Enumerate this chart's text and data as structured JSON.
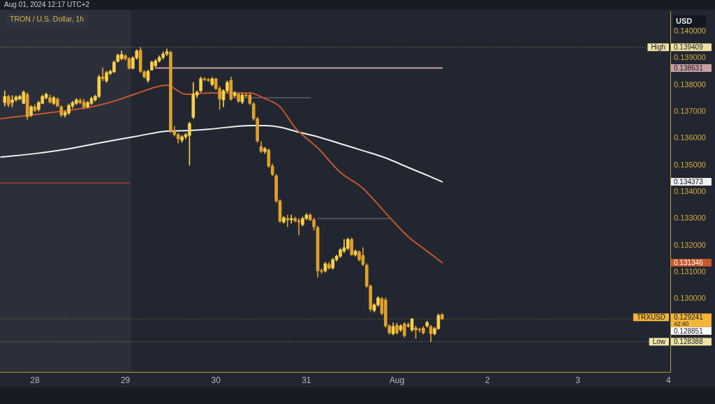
{
  "chart_data": {
    "type": "candlestick",
    "title": "TRON / U.S. Dollar, 1h",
    "subtitle": "Aug 01, 2024 12:17 UTC+2",
    "ylabel": "USD",
    "x": [
      "2024-07-27T16:00",
      "2024-07-27T17:00",
      "2024-07-27T18:00",
      "2024-07-27T19:00",
      "2024-07-27T20:00",
      "2024-07-27T21:00",
      "2024-07-27T22:00",
      "2024-07-27T23:00",
      "2024-07-28T00:00",
      "2024-07-28T01:00",
      "2024-07-28T02:00",
      "2024-07-28T03:00",
      "2024-07-28T04:00",
      "2024-07-28T05:00",
      "2024-07-28T06:00",
      "2024-07-28T07:00",
      "2024-07-28T08:00",
      "2024-07-28T09:00",
      "2024-07-28T10:00",
      "2024-07-28T11:00",
      "2024-07-28T12:00",
      "2024-07-28T13:00",
      "2024-07-28T14:00",
      "2024-07-28T15:00",
      "2024-07-28T16:00",
      "2024-07-28T17:00",
      "2024-07-28T18:00",
      "2024-07-28T19:00",
      "2024-07-28T20:00",
      "2024-07-28T21:00",
      "2024-07-28T22:00",
      "2024-07-28T23:00",
      "2024-07-29T00:00",
      "2024-07-29T01:00",
      "2024-07-29T02:00",
      "2024-07-29T03:00",
      "2024-07-29T04:00",
      "2024-07-29T05:00",
      "2024-07-29T06:00",
      "2024-07-29T07:00",
      "2024-07-29T08:00",
      "2024-07-29T09:00",
      "2024-07-29T10:00",
      "2024-07-29T11:00",
      "2024-07-29T12:00",
      "2024-07-29T13:00",
      "2024-07-29T14:00",
      "2024-07-29T15:00",
      "2024-07-29T16:00",
      "2024-07-29T17:00",
      "2024-07-29T18:00",
      "2024-07-29T19:00",
      "2024-07-29T20:00",
      "2024-07-29T21:00",
      "2024-07-29T22:00",
      "2024-07-29T23:00",
      "2024-07-30T00:00",
      "2024-07-30T01:00",
      "2024-07-30T02:00",
      "2024-07-30T03:00",
      "2024-07-30T04:00",
      "2024-07-30T05:00",
      "2024-07-30T06:00",
      "2024-07-30T07:00",
      "2024-07-30T08:00",
      "2024-07-30T09:00",
      "2024-07-30T10:00",
      "2024-07-30T11:00",
      "2024-07-30T12:00",
      "2024-07-30T13:00",
      "2024-07-30T14:00",
      "2024-07-30T15:00",
      "2024-07-30T16:00",
      "2024-07-30T17:00",
      "2024-07-30T18:00",
      "2024-07-30T19:00",
      "2024-07-30T20:00",
      "2024-07-30T21:00",
      "2024-07-30T22:00",
      "2024-07-30T23:00",
      "2024-07-31T00:00",
      "2024-07-31T01:00",
      "2024-07-31T02:00",
      "2024-07-31T03:00",
      "2024-07-31T04:00",
      "2024-07-31T05:00",
      "2024-07-31T06:00",
      "2024-07-31T07:00",
      "2024-07-31T08:00",
      "2024-07-31T09:00",
      "2024-07-31T10:00",
      "2024-07-31T11:00",
      "2024-07-31T12:00",
      "2024-07-31T13:00",
      "2024-07-31T14:00",
      "2024-07-31T15:00",
      "2024-07-31T16:00",
      "2024-07-31T17:00",
      "2024-07-31T18:00",
      "2024-07-31T19:00",
      "2024-07-31T20:00",
      "2024-07-31T21:00",
      "2024-07-31T22:00",
      "2024-07-31T23:00",
      "2024-08-01T00:00",
      "2024-08-01T01:00",
      "2024-08-01T02:00",
      "2024-08-01T03:00",
      "2024-08-01T04:00",
      "2024-08-01T05:00",
      "2024-08-01T06:00",
      "2024-08-01T07:00",
      "2024-08-01T08:00",
      "2024-08-01T09:00",
      "2024-08-01T10:00",
      "2024-08-01T11:00",
      "2024-08-01T12:00"
    ],
    "ohlc": [
      [
        0.13734,
        0.13778,
        0.13721,
        0.13757
      ],
      [
        0.13757,
        0.13762,
        0.13718,
        0.13726
      ],
      [
        0.13734,
        0.1376,
        0.13718,
        0.13744
      ],
      [
        0.13744,
        0.1376,
        0.13739,
        0.13755
      ],
      [
        0.13747,
        0.13762,
        0.13744,
        0.13757
      ],
      [
        0.13731,
        0.13778,
        0.13729,
        0.13773
      ],
      [
        0.13765,
        0.1377,
        0.13671,
        0.13681
      ],
      [
        0.13687,
        0.13723,
        0.13681,
        0.13718
      ],
      [
        0.13718,
        0.13726,
        0.137,
        0.13705
      ],
      [
        0.13708,
        0.13739,
        0.13702,
        0.13734
      ],
      [
        0.13731,
        0.13762,
        0.13729,
        0.13757
      ],
      [
        0.13752,
        0.1377,
        0.13747,
        0.13765
      ],
      [
        0.13752,
        0.13762,
        0.13731,
        0.13736
      ],
      [
        0.13731,
        0.13757,
        0.13726,
        0.13752
      ],
      [
        0.13747,
        0.13752,
        0.13718,
        0.13721
      ],
      [
        0.13718,
        0.13723,
        0.13681,
        0.13687
      ],
      [
        0.13687,
        0.13702,
        0.13679,
        0.13697
      ],
      [
        0.13695,
        0.13729,
        0.13689,
        0.13723
      ],
      [
        0.13721,
        0.13739,
        0.13713,
        0.13734
      ],
      [
        0.13731,
        0.13749,
        0.13726,
        0.13744
      ],
      [
        0.13742,
        0.13749,
        0.13729,
        0.13734
      ],
      [
        0.13736,
        0.13747,
        0.1371,
        0.13718
      ],
      [
        0.13718,
        0.13739,
        0.13713,
        0.13734
      ],
      [
        0.13731,
        0.13755,
        0.13726,
        0.13749
      ],
      [
        0.13744,
        0.13762,
        0.13739,
        0.13757
      ],
      [
        0.13757,
        0.13836,
        0.13752,
        0.1383
      ],
      [
        0.1383,
        0.13864,
        0.13815,
        0.13823
      ],
      [
        0.13815,
        0.13851,
        0.13809,
        0.13846
      ],
      [
        0.13843,
        0.13856,
        0.13838,
        0.13851
      ],
      [
        0.13849,
        0.1389,
        0.13846,
        0.13885
      ],
      [
        0.13888,
        0.13916,
        0.13885,
        0.13911
      ],
      [
        0.13898,
        0.13927,
        0.13893,
        0.13914
      ],
      [
        0.13909,
        0.13914,
        0.13893,
        0.13898
      ],
      [
        0.13898,
        0.13903,
        0.13859,
        0.13862
      ],
      [
        0.13862,
        0.13906,
        0.13859,
        0.13901
      ],
      [
        0.13901,
        0.13932,
        0.13896,
        0.13927
      ],
      [
        0.1393,
        0.139409,
        0.13846,
        0.13851
      ],
      [
        0.13849,
        0.13854,
        0.13825,
        0.1383
      ],
      [
        0.13817,
        0.13856,
        0.13809,
        0.13851
      ],
      [
        0.13856,
        0.1389,
        0.13854,
        0.13885
      ],
      [
        0.13872,
        0.13896,
        0.13867,
        0.1389
      ],
      [
        0.1389,
        0.13909,
        0.13885,
        0.13903
      ],
      [
        0.13903,
        0.13924,
        0.13896,
        0.13916
      ],
      [
        0.13916,
        0.13935,
        0.13909,
        0.13924
      ],
      [
        0.13922,
        0.13927,
        0.13621,
        0.13627
      ],
      [
        0.13627,
        0.13645,
        0.13608,
        0.13614
      ],
      [
        0.13614,
        0.13619,
        0.13582,
        0.13598
      ],
      [
        0.13593,
        0.13611,
        0.13585,
        0.13606
      ],
      [
        0.13606,
        0.13619,
        0.13598,
        0.13614
      ],
      [
        0.13611,
        0.13661,
        0.13499,
        0.13655
      ],
      [
        0.13679,
        0.13809,
        0.13674,
        0.13765
      ],
      [
        0.13762,
        0.13778,
        0.13752,
        0.13773
      ],
      [
        0.13778,
        0.1383,
        0.13773,
        0.13823
      ],
      [
        0.13823,
        0.13828,
        0.13815,
        0.1382
      ],
      [
        0.1382,
        0.13825,
        0.13812,
        0.13817
      ],
      [
        0.13802,
        0.13828,
        0.13796,
        0.13823
      ],
      [
        0.13823,
        0.13825,
        0.13783,
        0.13786
      ],
      [
        0.13786,
        0.13794,
        0.13708,
        0.13747
      ],
      [
        0.13744,
        0.13783,
        0.13718,
        0.13778
      ],
      [
        0.13778,
        0.13815,
        0.13773,
        0.13809
      ],
      [
        0.13817,
        0.1383,
        0.13742,
        0.13747
      ],
      [
        0.1376,
        0.13776,
        0.13755,
        0.1377
      ],
      [
        0.13765,
        0.1377,
        0.13734,
        0.13739
      ],
      [
        0.13736,
        0.13768,
        0.13729,
        0.13762
      ],
      [
        0.13762,
        0.13768,
        0.13755,
        0.1376
      ],
      [
        0.13762,
        0.13768,
        0.13726,
        0.13731
      ],
      [
        0.13729,
        0.13734,
        0.13668,
        0.13674
      ],
      [
        0.13674,
        0.13679,
        0.13585,
        0.1359
      ],
      [
        0.13569,
        0.13588,
        0.13546,
        0.13551
      ],
      [
        0.13551,
        0.13567,
        0.13543,
        0.13561
      ],
      [
        0.13556,
        0.13561,
        0.13491,
        0.13496
      ],
      [
        0.13496,
        0.13504,
        0.1346,
        0.13465
      ],
      [
        0.1346,
        0.13465,
        0.1336,
        0.13366
      ],
      [
        0.13366,
        0.13371,
        0.13285,
        0.1329
      ],
      [
        0.13287,
        0.13308,
        0.13282,
        0.13303
      ],
      [
        0.133,
        0.13313,
        0.13269,
        0.13295
      ],
      [
        0.13295,
        0.13313,
        0.13282,
        0.133
      ],
      [
        0.133,
        0.13306,
        0.13287,
        0.13292
      ],
      [
        0.13292,
        0.133,
        0.13238,
        0.13287
      ],
      [
        0.13277,
        0.13306,
        0.13272,
        0.133
      ],
      [
        0.133,
        0.13319,
        0.13295,
        0.13313
      ],
      [
        0.13313,
        0.13319,
        0.13292,
        0.13295
      ],
      [
        0.13295,
        0.13303,
        0.13256,
        0.13269
      ],
      [
        0.13266,
        0.13272,
        0.13081,
        0.13104
      ],
      [
        0.13104,
        0.13112,
        0.13094,
        0.13102
      ],
      [
        0.13104,
        0.13136,
        0.13099,
        0.13131
      ],
      [
        0.13128,
        0.13136,
        0.1311,
        0.13115
      ],
      [
        0.13115,
        0.13151,
        0.1311,
        0.13146
      ],
      [
        0.13146,
        0.13164,
        0.13141,
        0.13159
      ],
      [
        0.13159,
        0.13188,
        0.13154,
        0.13183
      ],
      [
        0.13178,
        0.13222,
        0.13172,
        0.13191
      ],
      [
        0.13188,
        0.13227,
        0.13183,
        0.13222
      ],
      [
        0.13222,
        0.13227,
        0.13162,
        0.13164
      ],
      [
        0.13164,
        0.13183,
        0.13159,
        0.13178
      ],
      [
        0.13175,
        0.1318,
        0.13141,
        0.13146
      ],
      [
        0.13162,
        0.13191,
        0.13123,
        0.13128
      ],
      [
        0.13125,
        0.13131,
        0.13042,
        0.13047
      ],
      [
        0.13047,
        0.13052,
        0.12953,
        0.12961
      ],
      [
        0.12956,
        0.12982,
        0.1295,
        0.12977
      ],
      [
        0.12977,
        0.13008,
        0.12971,
        0.13003
      ],
      [
        0.13,
        0.13005,
        0.1294,
        0.12945
      ],
      [
        0.12995,
        0.13003,
        0.12893,
        0.12898
      ],
      [
        0.12898,
        0.12903,
        0.12867,
        0.12872
      ],
      [
        0.12869,
        0.12909,
        0.12864,
        0.12896
      ],
      [
        0.12901,
        0.12909,
        0.12867,
        0.12872
      ],
      [
        0.12883,
        0.12903,
        0.12877,
        0.12898
      ],
      [
        0.12906,
        0.12911,
        0.12856,
        0.12862
      ],
      [
        0.12898,
        0.12909,
        0.12893,
        0.12901
      ],
      [
        0.12883,
        0.12927,
        0.12877,
        0.12924
      ],
      [
        0.1289,
        0.12898,
        0.12851,
        0.12883
      ],
      [
        0.12885,
        0.1289,
        0.12875,
        0.12883
      ],
      [
        0.1289,
        0.12896,
        0.12867,
        0.12872
      ],
      [
        0.12898,
        0.12916,
        0.12893,
        0.12911
      ],
      [
        0.12896,
        0.12901,
        0.128388,
        0.12869
      ],
      [
        0.12869,
        0.12893,
        0.12864,
        0.12888
      ],
      [
        0.12888,
        0.12943,
        0.12885,
        0.12937
      ],
      [
        0.1294,
        0.12945,
        0.12922,
        0.129241
      ]
    ],
    "colors": [
      "#f7cf4a",
      "#e0a02a",
      "#f7cf4a",
      "#f7cf4a",
      "#f7cf4a",
      "#f7cf4a",
      "#e0a02a",
      "#f7cf4a",
      "#e0a02a",
      "#f7cf4a",
      "#f7cf4a",
      "#f7cf4a",
      "#e0a02a",
      "#f7cf4a",
      "#e0a02a",
      "#e0a02a",
      "#f7cf4a",
      "#f7cf4a",
      "#f7cf4a",
      "#f7cf4a",
      "#e0a02a",
      "#e0a02a",
      "#f7cf4a",
      "#f7cf4a",
      "#f7cf4a",
      "#f7cf4a",
      "#e0a02a",
      "#f7cf4a",
      "#f7cf4a",
      "#f7cf4a",
      "#f7cf4a",
      "#f7cf4a",
      "#e0a02a",
      "#e0a02a",
      "#f7cf4a",
      "#f7cf4a",
      "#e0a02a",
      "#e0a02a",
      "#f7cf4a",
      "#f7cf4a",
      "#f7cf4a",
      "#f7cf4a",
      "#f7cf4a",
      "#f7cf4a",
      "#e0a02a",
      "#e0a02a",
      "#e0a02a",
      "#f7cf4a",
      "#f7cf4a",
      "#f7cf4a",
      "#f7cf4a",
      "#f7cf4a",
      "#f7cf4a",
      "#e0a02a",
      "#e0a02a",
      "#f7cf4a",
      "#e0a02a",
      "#e0a02a",
      "#f7cf4a",
      "#f7cf4a",
      "#e0a02a",
      "#f7cf4a",
      "#e0a02a",
      "#f7cf4a",
      "#e0a02a",
      "#e0a02a",
      "#e0a02a",
      "#e0a02a",
      "#e0a02a",
      "#f7cf4a",
      "#e0a02a",
      "#e0a02a",
      "#e0a02a",
      "#e0a02a",
      "#f7cf4a",
      "#e0a02a",
      "#f7cf4a",
      "#e0a02a",
      "#e0a02a",
      "#f7cf4a",
      "#f7cf4a",
      "#e0a02a",
      "#e0a02a",
      "#e0a02a",
      "#e0a02a",
      "#f7cf4a",
      "#e0a02a",
      "#f7cf4a",
      "#f7cf4a",
      "#f7cf4a",
      "#f7cf4a",
      "#f7cf4a",
      "#e0a02a",
      "#f7cf4a",
      "#e0a02a",
      "#e0a02a",
      "#e0a02a",
      "#e0a02a",
      "#f7cf4a",
      "#f7cf4a",
      "#e0a02a",
      "#e0a02a",
      "#e0a02a",
      "#f7cf4a",
      "#e0a02a",
      "#f7cf4a",
      "#e0a02a",
      "#f7cf4a",
      "#f7cf4a",
      "#e0a02a",
      "#e0a02a",
      "#e0a02a",
      "#f7cf4a",
      "#e0a02a",
      "#f7cf4a",
      "#f7cf4a",
      "#e0a02a"
    ],
    "series": [
      {
        "type": "line",
        "color": "#c4572c",
        "x": [
          "2024-07-27T15:00",
          "2024-07-28T00:00",
          "2024-07-28T09:00",
          "2024-07-28T16:00",
          "2024-07-28T21:00",
          "2024-07-29T03:00",
          "2024-07-29T11:00",
          "2024-07-29T16:00",
          "2024-07-29T22:00",
          "2024-07-30T09:00",
          "2024-07-30T13:00",
          "2024-07-30T17:00",
          "2024-07-30T21:00",
          "2024-07-31T03:00",
          "2024-07-31T09:00",
          "2024-07-31T15:00",
          "2024-07-31T21:00",
          "2024-08-01T03:00",
          "2024-08-01T08:00",
          "2024-08-01T12:00"
        ],
        "values": [
          0.13674,
          0.13689,
          0.13705,
          0.13721,
          0.13739,
          0.13768,
          0.13799,
          0.13765,
          0.1377,
          0.1377,
          0.13749,
          0.13718,
          0.1364,
          0.13564,
          0.13473,
          0.13413,
          0.13321,
          0.13232,
          0.13178,
          0.131346
        ]
      },
      {
        "type": "line",
        "color": "#f0f0f0",
        "x": [
          "2024-07-27T15:00",
          "2024-07-28T00:00",
          "2024-07-28T09:00",
          "2024-07-28T16:00",
          "2024-07-28T21:00",
          "2024-07-29T03:00",
          "2024-07-29T11:00",
          "2024-07-29T16:00",
          "2024-07-29T22:00",
          "2024-07-30T09:00",
          "2024-07-30T13:00",
          "2024-07-30T17:00",
          "2024-07-30T21:00",
          "2024-07-31T03:00",
          "2024-07-31T09:00",
          "2024-07-31T15:00",
          "2024-07-31T21:00",
          "2024-08-01T03:00",
          "2024-08-01T08:00",
          "2024-08-01T12:00"
        ],
        "values": [
          0.1353,
          0.13543,
          0.13561,
          0.1358,
          0.13593,
          0.13608,
          0.13627,
          0.13629,
          0.13634,
          0.13648,
          0.13648,
          0.13642,
          0.13627,
          0.13606,
          0.1358,
          0.13554,
          0.13527,
          0.13491,
          0.13462,
          0.134373
        ]
      },
      {
        "type": "line",
        "color": "#8e3b3f",
        "x": [
          "2024-07-27T14:45",
          "2024-07-29T01:00"
        ],
        "values": [
          0.13433,
          0.13433
        ]
      },
      {
        "type": "line",
        "color": "#c8a0a4",
        "x": [
          "2024-07-29T08:00",
          "2024-08-01T12:00"
        ],
        "values": [
          0.138631,
          0.138631
        ]
      },
      {
        "type": "line",
        "color": "#4c515d",
        "x": [
          "2024-07-30T04:00",
          "2024-07-31T01:00"
        ],
        "values": [
          0.13752,
          0.13752
        ]
      },
      {
        "type": "line",
        "color": "#4c515d",
        "x": [
          "2024-07-31T03:00",
          "2024-07-31T22:00"
        ],
        "values": [
          0.133,
          0.133
        ]
      }
    ],
    "ref_lines": [
      {
        "axis": "y",
        "value": 0.139409,
        "label": "High",
        "line_style": "dotted",
        "color": "#f0e4a4"
      },
      {
        "axis": "y",
        "value": 0.129241,
        "label": "TRXUSD",
        "line_style": "dotted",
        "color": "#f2b53a"
      },
      {
        "axis": "y",
        "value": 0.128388,
        "label": "Low",
        "line_style": "dotted",
        "color": "#f0e4a4"
      }
    ],
    "bands": [
      {
        "axis": "x",
        "from": "2024-07-27T14:45",
        "to": "2024-07-29T01:30",
        "color": "#2b2f3a"
      }
    ],
    "annotations": [
      "42:40"
    ],
    "xlim": [
      "2024-07-27T14:45",
      "2024-08-04T00:30"
    ],
    "xticks": [
      {
        "value": "2024-07-28",
        "label": "28"
      },
      {
        "value": "2024-07-29",
        "label": "29"
      },
      {
        "value": "2024-07-30",
        "label": "30"
      },
      {
        "value": "2024-07-31",
        "label": "31"
      },
      {
        "value": "2024-08-01",
        "label": "Aug"
      },
      {
        "value": "2024-08-02",
        "label": "2"
      },
      {
        "value": "2024-08-03",
        "label": "3"
      },
      {
        "value": "2024-08-04",
        "label": "4"
      }
    ],
    "ylim": [
      0.12726,
      0.14076
    ],
    "yticks": [
      {
        "value": 0.13,
        "label": "0.130000"
      },
      {
        "value": 0.131,
        "label": "0.131000"
      },
      {
        "value": 0.132,
        "label": "0.132000"
      },
      {
        "value": 0.133,
        "label": "0.133000"
      },
      {
        "value": 0.134,
        "label": "0.134000"
      },
      {
        "value": 0.135,
        "label": "0.135000"
      },
      {
        "value": 0.136,
        "label": "0.136000"
      },
      {
        "value": 0.137,
        "label": "0.137000"
      },
      {
        "value": 0.138,
        "label": "0.138000"
      },
      {
        "value": 0.139,
        "label": "0.139000"
      },
      {
        "value": 0.14,
        "label": "0.140000"
      },
      0.139409,
      0.138631,
      0.134373,
      0.131346,
      0.129241,
      0.128851,
      0.128388
    ]
  }
}
